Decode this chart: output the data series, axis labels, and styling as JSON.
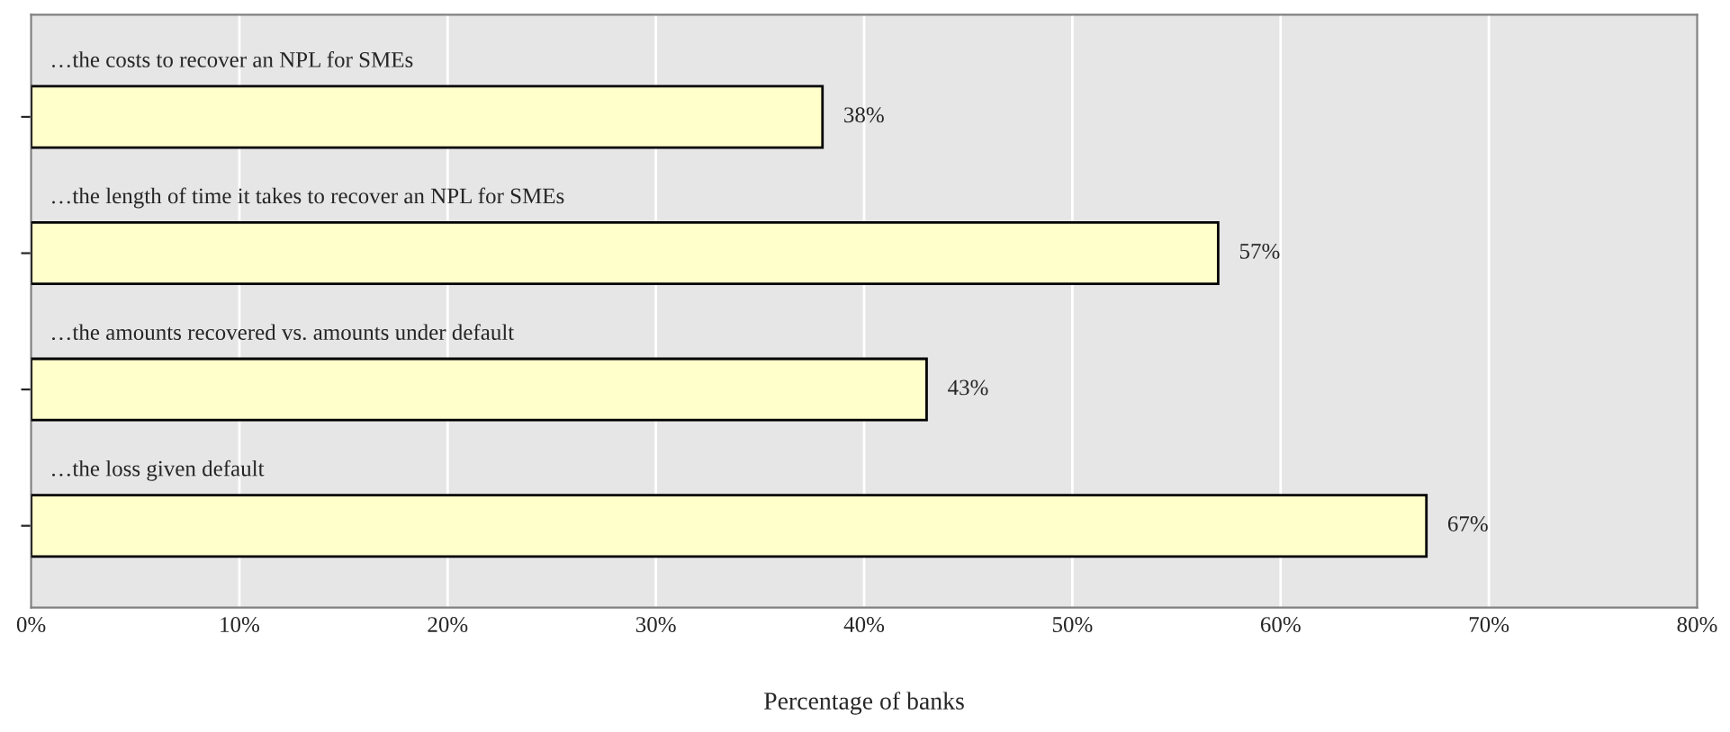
{
  "chart_data": {
    "type": "bar",
    "orientation": "horizontal",
    "xlabel": "Percentage of banks",
    "categories": [
      "…the costs to recover an NPL for SMEs",
      "…the length of time it takes to recover an NPL for SMEs",
      "…the amounts recovered vs. amounts under default",
      "…the loss given default"
    ],
    "values": [
      38,
      57,
      43,
      67
    ],
    "color": "#ffffcc",
    "value_labels": [
      "38%",
      "57%",
      "43%",
      "67%"
    ],
    "xlim": [
      0,
      80
    ],
    "xticks": [
      {
        "value": 0,
        "label": "0%"
      },
      {
        "value": 10,
        "label": "10%"
      },
      {
        "value": 20,
        "label": "20%"
      },
      {
        "value": 30,
        "label": "30%"
      },
      {
        "value": 40,
        "label": "40%"
      },
      {
        "value": 50,
        "label": "50%"
      },
      {
        "value": 60,
        "label": "60%"
      },
      {
        "value": 70,
        "label": "70%"
      },
      {
        "value": 80,
        "label": "80%"
      }
    ],
    "grid": "x",
    "tick_labels": "x"
  }
}
